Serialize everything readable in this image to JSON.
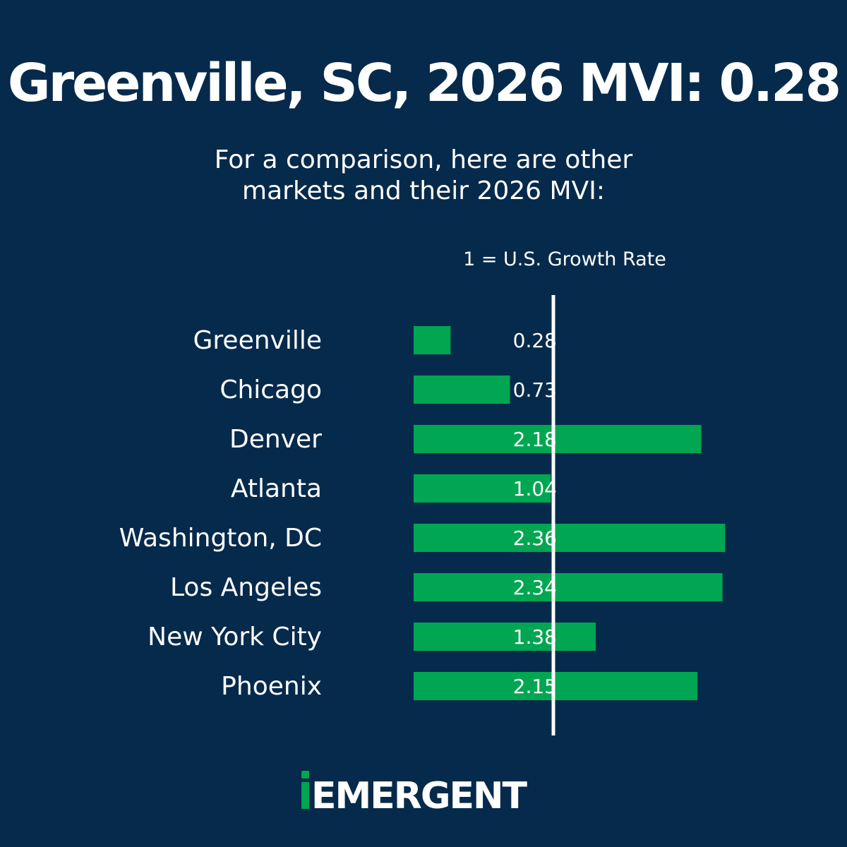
{
  "title": "Greenville, SC, 2026 MVI: 0.28",
  "subtitle": {
    "line1": "For a comparison, here are other",
    "line2": "markets and their 2026 MVI:"
  },
  "reference_label": "1 = U.S. Growth Rate",
  "brand": {
    "logo_text": "iEMERGENT",
    "accent_color": "#00a651",
    "background_color": "#062a4b"
  },
  "chart_data": {
    "type": "bar",
    "orientation": "horizontal",
    "categories": [
      "Greenville",
      "Chicago",
      "Denver",
      "Atlanta",
      "Washington, DC",
      "Los Angeles",
      "New York City",
      "Phoenix"
    ],
    "values": [
      0.28,
      0.73,
      2.18,
      1.04,
      2.36,
      2.34,
      1.38,
      2.15
    ],
    "data_labels": [
      "0.28",
      "0.73",
      "2.18",
      "1.04",
      "2.36",
      "2.34",
      "1.38",
      "2.15"
    ],
    "reference_line": 1,
    "bar_color": "#00a651",
    "grid": false
  }
}
